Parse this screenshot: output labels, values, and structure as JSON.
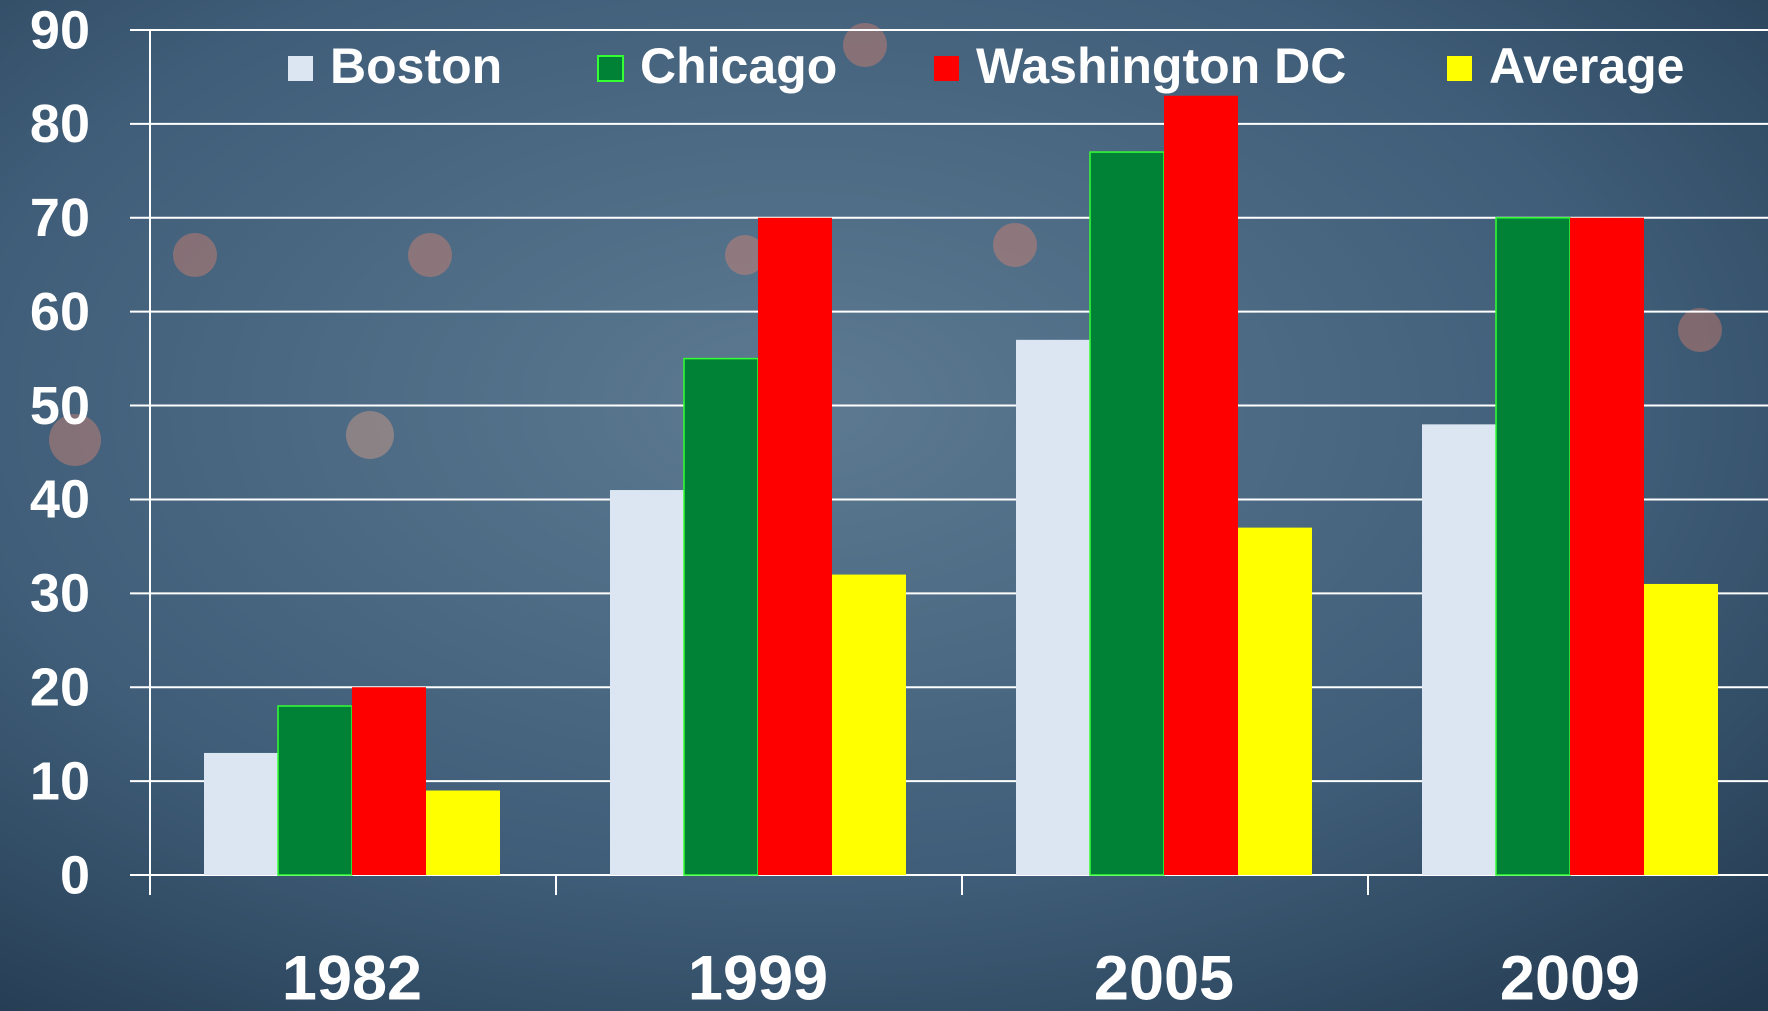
{
  "chart_data": {
    "type": "bar",
    "categories": [
      "1982",
      "1999",
      "2005",
      "2009"
    ],
    "series": [
      {
        "name": "Boston",
        "color": "#dce6f2",
        "values": [
          13,
          41,
          57,
          48
        ]
      },
      {
        "name": "Chicago",
        "color": "#008236",
        "values": [
          18,
          55,
          77,
          70
        ]
      },
      {
        "name": "Washington DC",
        "color": "#ff0000",
        "values": [
          20,
          70,
          83,
          70
        ]
      },
      {
        "name": "Average",
        "color": "#ffff00",
        "values": [
          9,
          32,
          37,
          31
        ]
      }
    ],
    "ylim": [
      0,
      90
    ],
    "yticks": [
      0,
      10,
      20,
      30,
      40,
      50,
      60,
      70,
      80,
      90
    ],
    "grid": true,
    "legend": "top"
  }
}
